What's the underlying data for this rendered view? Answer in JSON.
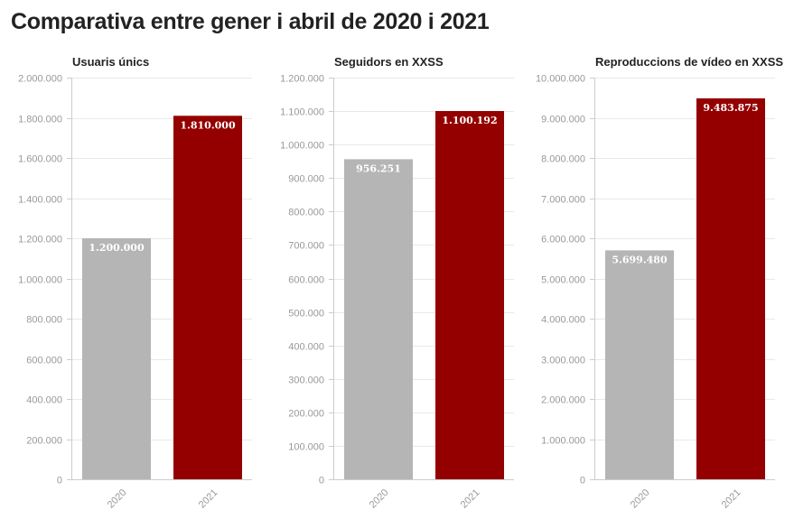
{
  "title": "Comparativa entre gener i abril de 2020 i 2021",
  "chart_data": [
    {
      "type": "bar",
      "title": "Usuaris únics",
      "categories": [
        "2020",
        "2021"
      ],
      "values": [
        1200000,
        1810000
      ],
      "value_labels": [
        "1.200.000",
        "1.810.000"
      ],
      "ylim": [
        0,
        2000000
      ],
      "yticks": [
        0,
        200000,
        400000,
        600000,
        800000,
        1000000,
        1200000,
        1400000,
        1600000,
        1800000,
        2000000
      ],
      "ytick_labels": [
        "0",
        "200.000",
        "400.000",
        "600.000",
        "800.000",
        "1.000.000",
        "1.200.000",
        "1.400.000",
        "1.600.000",
        "1.800.000",
        "2.000.000"
      ],
      "colors": [
        "#b5b5b5",
        "#940000"
      ],
      "grid": true
    },
    {
      "type": "bar",
      "title": "Seguidors en XXSS",
      "categories": [
        "2020",
        "2021"
      ],
      "values": [
        956251,
        1100192
      ],
      "value_labels": [
        "956.251",
        "1.100.192"
      ],
      "ylim": [
        0,
        1200000
      ],
      "yticks": [
        0,
        100000,
        200000,
        300000,
        400000,
        500000,
        600000,
        700000,
        800000,
        900000,
        1000000,
        1100000,
        1200000
      ],
      "ytick_labels": [
        "0",
        "100.000",
        "200.000",
        "300.000",
        "400.000",
        "500.000",
        "600.000",
        "700.000",
        "800.000",
        "900.000",
        "1.000.000",
        "1.100.000",
        "1.200.000"
      ],
      "colors": [
        "#b5b5b5",
        "#940000"
      ],
      "grid": true
    },
    {
      "type": "bar",
      "title": "Reproduccions de vídeo en XXSS",
      "categories": [
        "2020",
        "2021"
      ],
      "values": [
        5699480,
        9483875
      ],
      "value_labels": [
        "5.699.480",
        "9.483.875"
      ],
      "ylim": [
        0,
        10000000
      ],
      "yticks": [
        0,
        1000000,
        2000000,
        3000000,
        4000000,
        5000000,
        6000000,
        7000000,
        8000000,
        9000000,
        10000000
      ],
      "ytick_labels": [
        "0",
        "1.000.000",
        "2.000.000",
        "3.000.000",
        "4.000.000",
        "5.000.000",
        "6.000.000",
        "7.000.000",
        "8.000.000",
        "9.000.000",
        "10.000.000"
      ],
      "colors": [
        "#b5b5b5",
        "#940000"
      ],
      "grid": true
    }
  ]
}
